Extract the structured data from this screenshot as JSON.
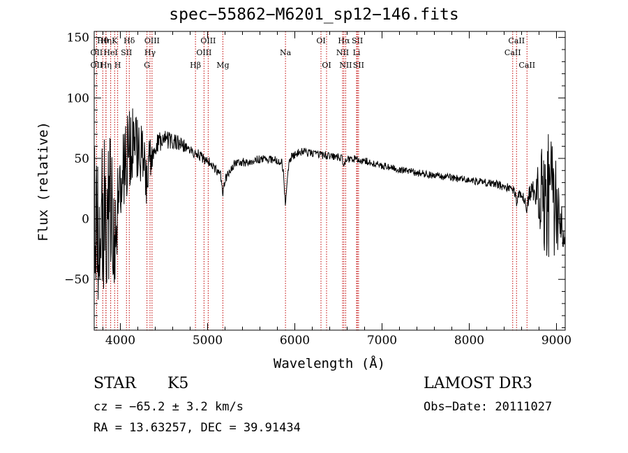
{
  "chart_data": {
    "type": "line",
    "title": "spec−55862−M6201_sp12−146.fits",
    "xlabel": "Wavelength (Å)",
    "ylabel": "Flux (relative)",
    "xlim": [
      3700,
      9100
    ],
    "ylim": [
      -92,
      155
    ],
    "xticks": [
      4000,
      5000,
      6000,
      7000,
      8000,
      9000
    ],
    "yticks": [
      -50,
      0,
      50,
      100,
      150
    ],
    "continuum_anchors": {
      "x": [
        3700,
        3800,
        3900,
        4000,
        4100,
        4200,
        4300,
        4400,
        4500,
        4700,
        4850,
        5000,
        5150,
        5200,
        5300,
        5500,
        5700,
        5850,
        5890,
        5950,
        6050,
        6200,
        6400,
        6600,
        6800,
        7000,
        7200,
        7400,
        7600,
        7800,
        8000,
        8200,
        8400,
        8500,
        8550,
        8600,
        8650,
        8700,
        8800,
        8900,
        9000,
        9100
      ],
      "y": [
        -10,
        5,
        10,
        40,
        60,
        60,
        42,
        62,
        66,
        62,
        55,
        48,
        36,
        32,
        45,
        48,
        50,
        47,
        30,
        50,
        56,
        54,
        52,
        50,
        48,
        44,
        41,
        38,
        36,
        34,
        32,
        30,
        27,
        24,
        22,
        18,
        15,
        22,
        25,
        25,
        10,
        -10
      ]
    },
    "absorption_features": [
      {
        "x": 3934,
        "depth": 30
      },
      {
        "x": 3969,
        "depth": 25
      },
      {
        "x": 4300,
        "depth": 18
      },
      {
        "x": 5175,
        "depth": 12
      },
      {
        "x": 5893,
        "depth": 18
      },
      {
        "x": 6562,
        "depth": 6
      },
      {
        "x": 8542,
        "depth": 8
      },
      {
        "x": 8662,
        "depth": 10
      }
    ],
    "noise_profile": {
      "x": [
        3700,
        3900,
        4000,
        4300,
        4400,
        4800,
        5200,
        6000,
        7000,
        8000,
        8600,
        8750,
        8900,
        9000,
        9100
      ],
      "amplitude": [
        70,
        60,
        42,
        22,
        9,
        5,
        4,
        3.5,
        3,
        3,
        4,
        9,
        70,
        40,
        12
      ]
    },
    "lines": [
      {
        "label": "Hθ",
        "x": 3798,
        "row": 0
      },
      {
        "label": "Hη",
        "x": 3835,
        "row": 0
      },
      {
        "label": "K",
        "x": 3934,
        "row": 0
      },
      {
        "label": "Hδ",
        "x": 4102,
        "row": 0
      },
      {
        "label": "OIII",
        "x": 4363,
        "row": 0
      },
      {
        "label": "OIII",
        "x": 5007,
        "row": 0
      },
      {
        "label": "OI",
        "x": 6300,
        "row": 0
      },
      {
        "label": "Hα",
        "x": 6563,
        "row": 0
      },
      {
        "label": "SII",
        "x": 6717,
        "row": 0
      },
      {
        "label": "CaII",
        "x": 8542,
        "row": 0
      },
      {
        "label": "OII",
        "x": 3727,
        "row": 1
      },
      {
        "label": "HeI",
        "x": 3889,
        "row": 1
      },
      {
        "label": "SII",
        "x": 4070,
        "row": 1
      },
      {
        "label": "Hγ",
        "x": 4340,
        "row": 1
      },
      {
        "label": "OIII",
        "x": 4959,
        "row": 1
      },
      {
        "label": "Na",
        "x": 5893,
        "row": 1
      },
      {
        "label": "NII",
        "x": 6548,
        "row": 1
      },
      {
        "label": "Li",
        "x": 6708,
        "row": 1
      },
      {
        "label": "CaII",
        "x": 8498,
        "row": 1
      },
      {
        "label": "OII",
        "x": 3727,
        "row": 2
      },
      {
        "label": "Hη",
        "x": 3835,
        "row": 2
      },
      {
        "label": "H",
        "x": 3969,
        "row": 2
      },
      {
        "label": "G",
        "x": 4305,
        "row": 2
      },
      {
        "label": "Hβ",
        "x": 4861,
        "row": 2
      },
      {
        "label": "Mg",
        "x": 5175,
        "row": 2
      },
      {
        "label": "OI",
        "x": 6364,
        "row": 2
      },
      {
        "label": "NII",
        "x": 6583,
        "row": 2
      },
      {
        "label": "SII",
        "x": 6731,
        "row": 2
      },
      {
        "label": "CaII",
        "x": 8662,
        "row": 2
      }
    ]
  },
  "info": {
    "object_type": "STAR",
    "subclass": "K5",
    "survey": "LAMOST DR3",
    "redshift_text": "cz = −65.2 ± 3.2 km/s",
    "obs_date_text": "Obs−Date: 20111027",
    "coords_text": "RA =  13.63257, DEC =  39.91434"
  }
}
